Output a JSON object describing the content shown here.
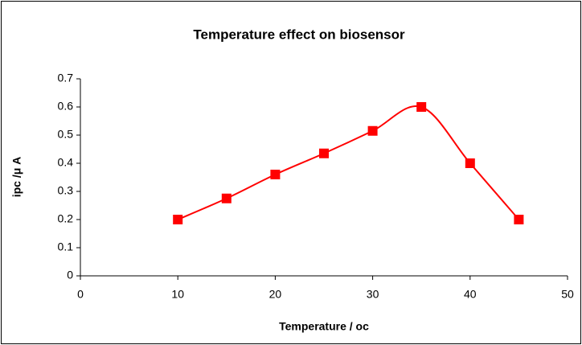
{
  "chart_data": {
    "type": "line",
    "title": "Temperature effect on biosensor",
    "x_label": "Temperature / oc",
    "y_label": "ipc /μ A",
    "x": [
      10,
      15,
      20,
      25,
      30,
      35,
      40,
      45
    ],
    "series": [
      {
        "name": "ipc",
        "color": "#ff0000",
        "values": [
          0.2,
          0.275,
          0.36,
          0.435,
          0.515,
          0.6,
          0.4,
          0.2
        ]
      }
    ],
    "xlim": [
      0,
      50
    ],
    "xticks": [
      0,
      10,
      20,
      30,
      40,
      50
    ],
    "ylim": [
      0,
      0.7
    ],
    "yticks": [
      0,
      0.1,
      0.2,
      0.3,
      0.4,
      0.5,
      0.6,
      0.7
    ],
    "grid": false,
    "smooth": true
  }
}
